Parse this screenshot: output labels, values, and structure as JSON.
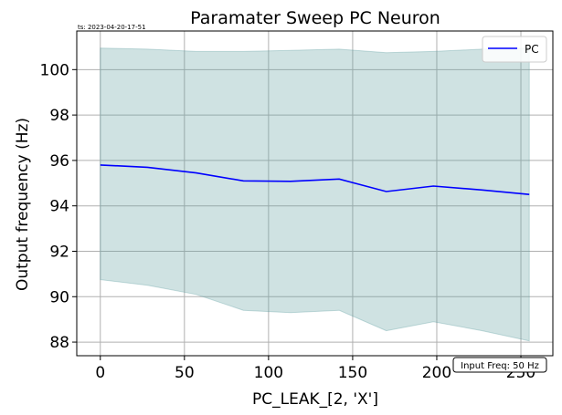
{
  "chart_data": {
    "type": "line",
    "title": "Paramater Sweep PC Neuron",
    "timestamp": "ts: 2023-04-20-17-51",
    "xlabel": "PC_LEAK_[2, 'X']",
    "ylabel": "Output frequency (Hz)",
    "xlim": [
      -14,
      269
    ],
    "ylim": [
      87.4,
      101.7
    ],
    "xticks": [
      0,
      50,
      100,
      150,
      200,
      250
    ],
    "xtick_labels": [
      "0",
      "50",
      "100",
      "150",
      "200",
      "250"
    ],
    "yticks": [
      88,
      90,
      92,
      94,
      96,
      98,
      100
    ],
    "ytick_labels": [
      "88",
      "90",
      "92",
      "94",
      "96",
      "98",
      "100"
    ],
    "grid": true,
    "legend": {
      "placement": "top-right",
      "entries": [
        "PC"
      ]
    },
    "series": [
      {
        "name": "PC",
        "color": "#0000ff",
        "x": [
          0,
          28,
          57,
          85,
          113,
          142,
          170,
          198,
          227,
          255
        ],
        "y": [
          95.8,
          95.7,
          95.45,
          95.1,
          95.08,
          95.18,
          94.63,
          94.87,
          94.7,
          94.5
        ]
      }
    ],
    "band": {
      "color": "#5f9ea0",
      "opacity": 0.3,
      "upper": [
        100.95,
        100.9,
        100.8,
        100.8,
        100.85,
        100.9,
        100.75,
        100.8,
        100.9,
        100.95
      ],
      "lower": [
        90.75,
        90.5,
        90.1,
        89.4,
        89.3,
        89.4,
        88.5,
        88.9,
        88.5,
        88.05
      ]
    },
    "annotation": "Input Freq: 50 Hz"
  }
}
